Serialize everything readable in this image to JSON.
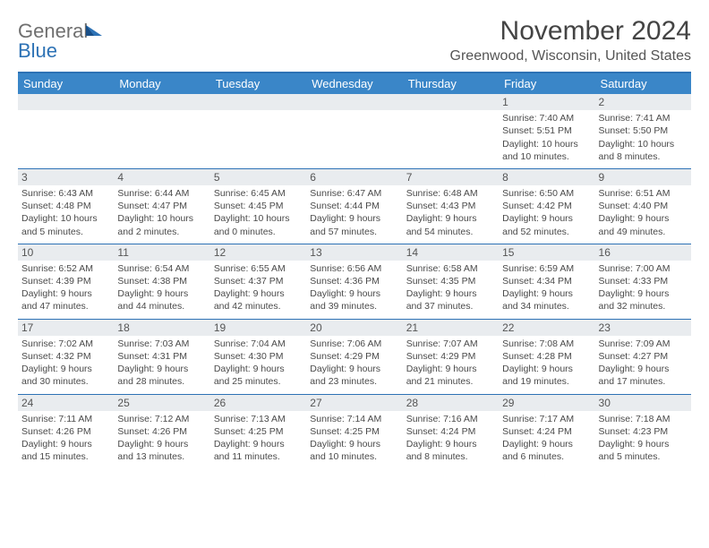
{
  "brand": {
    "word1": "General",
    "word2": "Blue"
  },
  "title": "November 2024",
  "location": "Greenwood, Wisconsin, United States",
  "colors": {
    "header_bg": "#3a86c8",
    "border": "#2d72b5",
    "daynum_bg": "#e9ecef",
    "text": "#4a4a4a"
  },
  "day_headers": [
    "Sunday",
    "Monday",
    "Tuesday",
    "Wednesday",
    "Thursday",
    "Friday",
    "Saturday"
  ],
  "weeks": [
    {
      "nums": [
        "",
        "",
        "",
        "",
        "",
        "1",
        "2"
      ],
      "cells": [
        null,
        null,
        null,
        null,
        null,
        {
          "sunrise": "7:40 AM",
          "sunset": "5:51 PM",
          "day_h": 10,
          "day_m": 10
        },
        {
          "sunrise": "7:41 AM",
          "sunset": "5:50 PM",
          "day_h": 10,
          "day_m": 8
        }
      ]
    },
    {
      "nums": [
        "3",
        "4",
        "5",
        "6",
        "7",
        "8",
        "9"
      ],
      "cells": [
        {
          "sunrise": "6:43 AM",
          "sunset": "4:48 PM",
          "day_h": 10,
          "day_m": 5
        },
        {
          "sunrise": "6:44 AM",
          "sunset": "4:47 PM",
          "day_h": 10,
          "day_m": 2
        },
        {
          "sunrise": "6:45 AM",
          "sunset": "4:45 PM",
          "day_h": 10,
          "day_m": 0
        },
        {
          "sunrise": "6:47 AM",
          "sunset": "4:44 PM",
          "day_h": 9,
          "day_m": 57
        },
        {
          "sunrise": "6:48 AM",
          "sunset": "4:43 PM",
          "day_h": 9,
          "day_m": 54
        },
        {
          "sunrise": "6:50 AM",
          "sunset": "4:42 PM",
          "day_h": 9,
          "day_m": 52
        },
        {
          "sunrise": "6:51 AM",
          "sunset": "4:40 PM",
          "day_h": 9,
          "day_m": 49
        }
      ]
    },
    {
      "nums": [
        "10",
        "11",
        "12",
        "13",
        "14",
        "15",
        "16"
      ],
      "cells": [
        {
          "sunrise": "6:52 AM",
          "sunset": "4:39 PM",
          "day_h": 9,
          "day_m": 47
        },
        {
          "sunrise": "6:54 AM",
          "sunset": "4:38 PM",
          "day_h": 9,
          "day_m": 44
        },
        {
          "sunrise": "6:55 AM",
          "sunset": "4:37 PM",
          "day_h": 9,
          "day_m": 42
        },
        {
          "sunrise": "6:56 AM",
          "sunset": "4:36 PM",
          "day_h": 9,
          "day_m": 39
        },
        {
          "sunrise": "6:58 AM",
          "sunset": "4:35 PM",
          "day_h": 9,
          "day_m": 37
        },
        {
          "sunrise": "6:59 AM",
          "sunset": "4:34 PM",
          "day_h": 9,
          "day_m": 34
        },
        {
          "sunrise": "7:00 AM",
          "sunset": "4:33 PM",
          "day_h": 9,
          "day_m": 32
        }
      ]
    },
    {
      "nums": [
        "17",
        "18",
        "19",
        "20",
        "21",
        "22",
        "23"
      ],
      "cells": [
        {
          "sunrise": "7:02 AM",
          "sunset": "4:32 PM",
          "day_h": 9,
          "day_m": 30
        },
        {
          "sunrise": "7:03 AM",
          "sunset": "4:31 PM",
          "day_h": 9,
          "day_m": 28
        },
        {
          "sunrise": "7:04 AM",
          "sunset": "4:30 PM",
          "day_h": 9,
          "day_m": 25
        },
        {
          "sunrise": "7:06 AM",
          "sunset": "4:29 PM",
          "day_h": 9,
          "day_m": 23
        },
        {
          "sunrise": "7:07 AM",
          "sunset": "4:29 PM",
          "day_h": 9,
          "day_m": 21
        },
        {
          "sunrise": "7:08 AM",
          "sunset": "4:28 PM",
          "day_h": 9,
          "day_m": 19
        },
        {
          "sunrise": "7:09 AM",
          "sunset": "4:27 PM",
          "day_h": 9,
          "day_m": 17
        }
      ]
    },
    {
      "nums": [
        "24",
        "25",
        "26",
        "27",
        "28",
        "29",
        "30"
      ],
      "cells": [
        {
          "sunrise": "7:11 AM",
          "sunset": "4:26 PM",
          "day_h": 9,
          "day_m": 15
        },
        {
          "sunrise": "7:12 AM",
          "sunset": "4:26 PM",
          "day_h": 9,
          "day_m": 13
        },
        {
          "sunrise": "7:13 AM",
          "sunset": "4:25 PM",
          "day_h": 9,
          "day_m": 11
        },
        {
          "sunrise": "7:14 AM",
          "sunset": "4:25 PM",
          "day_h": 9,
          "day_m": 10
        },
        {
          "sunrise": "7:16 AM",
          "sunset": "4:24 PM",
          "day_h": 9,
          "day_m": 8
        },
        {
          "sunrise": "7:17 AM",
          "sunset": "4:24 PM",
          "day_h": 9,
          "day_m": 6
        },
        {
          "sunrise": "7:18 AM",
          "sunset": "4:23 PM",
          "day_h": 9,
          "day_m": 5
        }
      ]
    }
  ]
}
